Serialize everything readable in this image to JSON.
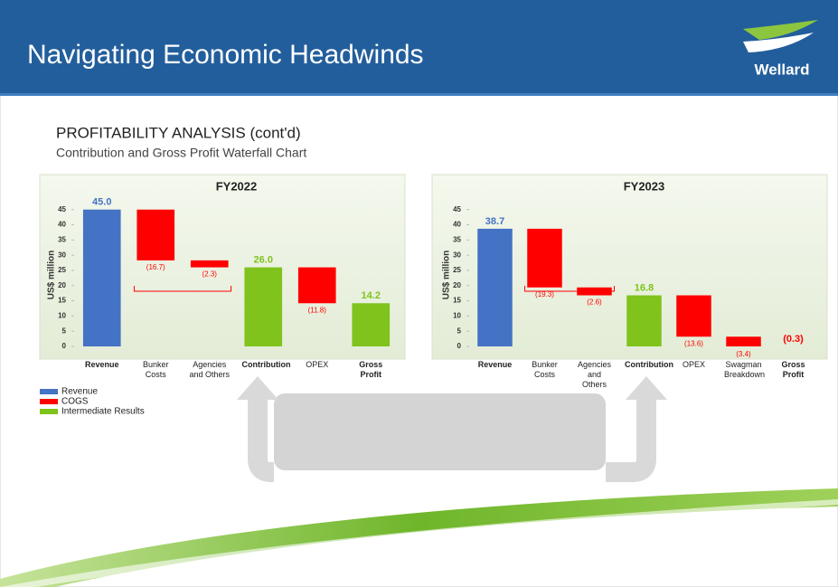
{
  "header": {
    "title": "Navigating Economic Headwinds",
    "logo": "Wellard"
  },
  "section": {
    "title": "PROFITABILITY ANALYSIS (cont'd)",
    "subtitle": "Contribution and Gross Profit Waterfall Chart"
  },
  "legend": [
    {
      "name": "Revenue",
      "color": "#4472c4"
    },
    {
      "name": "COGS",
      "color": "#ff0000"
    },
    {
      "name": "Intermediate Results",
      "color": "#7fc31c"
    }
  ],
  "chart_data": [
    {
      "type": "waterfall",
      "title": "FY2022",
      "y_label": "US$ million",
      "categories": [
        "Revenue",
        "Bunker Costs",
        "Agencies and Others",
        "Contribution",
        "OPEX",
        "Gross Profit"
      ],
      "values": [
        45.0,
        -16.7,
        -2.3,
        26.0,
        -11.8,
        14.2
      ],
      "value_labels": [
        "45.0",
        "(16.7)",
        "(2.3)",
        "26.0",
        "(11.8)",
        "14.2"
      ],
      "measure": [
        "total",
        "relative",
        "relative",
        "total",
        "relative",
        "total"
      ],
      "colors": [
        "#4472c4",
        "#ff0000",
        "#ff0000",
        "#7fc31c",
        "#ff0000",
        "#7fc31c"
      ],
      "ylim": [
        0,
        47
      ],
      "yticks": [
        0,
        5,
        10,
        15,
        20,
        25,
        30,
        35,
        40,
        45
      ]
    },
    {
      "type": "waterfall",
      "title": "FY2023",
      "y_label": "US$ million",
      "categories": [
        "Revenue",
        "Bunker Costs",
        "Agencies and Others",
        "Contribution",
        "OPEX",
        "Swagman Breakdown",
        "Gross Profit"
      ],
      "values": [
        38.7,
        -19.3,
        -2.6,
        16.8,
        -13.6,
        -3.4,
        -0.3
      ],
      "value_labels": [
        "38.7",
        "(19.3)",
        "(2.6)",
        "16.8",
        "(13.6)",
        "(3.4)",
        "(0.3)"
      ],
      "measure": [
        "total",
        "relative",
        "relative",
        "total",
        "relative",
        "relative",
        "total"
      ],
      "colors": [
        "#4472c4",
        "#ff0000",
        "#ff0000",
        "#7fc31c",
        "#ff0000",
        "#ff0000",
        "#ff0000"
      ],
      "ylim": [
        0,
        47
      ],
      "yticks": [
        0,
        5,
        10,
        15,
        20,
        25,
        30,
        35,
        40,
        45
      ]
    }
  ]
}
